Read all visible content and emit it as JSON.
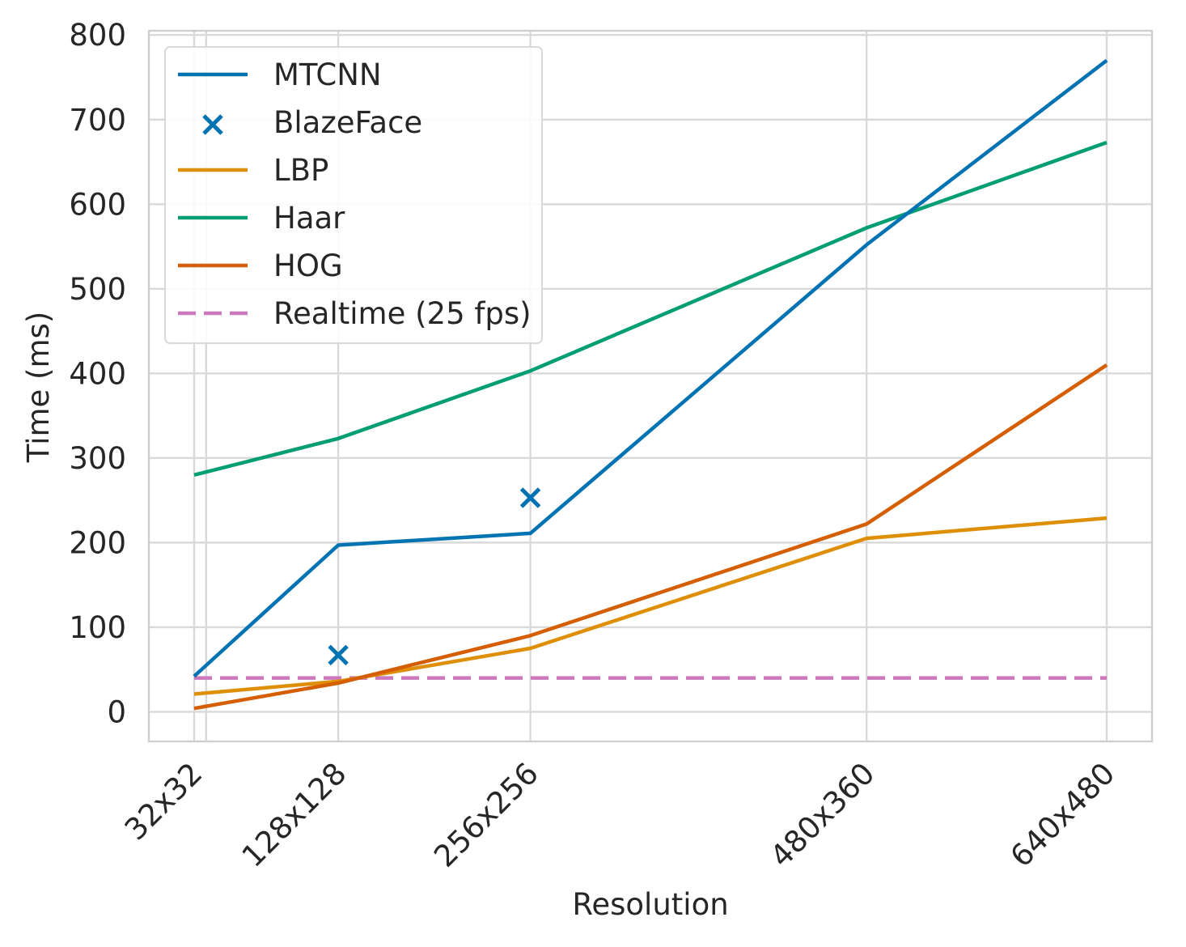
{
  "chart_data": {
    "type": "line",
    "title": "",
    "xlabel": "Resolution",
    "ylabel": "Time (ms)",
    "x": [
      32,
      40,
      128,
      256,
      480,
      640
    ],
    "x_ticks": [
      {
        "value": 32,
        "label": "32x32"
      },
      {
        "value": 128,
        "label": "128x128"
      },
      {
        "value": 256,
        "label": "256x256"
      },
      {
        "value": 480,
        "label": "480x360"
      },
      {
        "value": 640,
        "label": "640x480"
      }
    ],
    "y_ticks": [
      0,
      100,
      200,
      300,
      400,
      500,
      600,
      700,
      800
    ],
    "xlim": [
      0,
      644
    ],
    "ylim": [
      -35,
      805
    ],
    "grid": true,
    "legend_position": "top-left",
    "series": [
      {
        "name": "MTCNN",
        "kind": "line",
        "color": "#0173b2",
        "dash": false,
        "points": [
          [
            32,
            42
          ],
          [
            128,
            197
          ],
          [
            256,
            211
          ],
          [
            480,
            552
          ],
          [
            640,
            770
          ]
        ]
      },
      {
        "name": "BlazeFace",
        "kind": "marker",
        "marker": "x",
        "color": "#0173b2",
        "dash": false,
        "points": [
          [
            128,
            67
          ],
          [
            256,
            253
          ]
        ]
      },
      {
        "name": "LBP",
        "kind": "line",
        "color": "#de8f05",
        "dash": false,
        "points": [
          [
            32,
            21
          ],
          [
            128,
            36
          ],
          [
            256,
            75
          ],
          [
            480,
            205
          ],
          [
            640,
            229
          ]
        ]
      },
      {
        "name": "Haar",
        "kind": "line",
        "color": "#029e73",
        "dash": false,
        "points": [
          [
            32,
            280
          ],
          [
            128,
            323
          ],
          [
            256,
            403
          ],
          [
            480,
            572
          ],
          [
            640,
            673
          ]
        ]
      },
      {
        "name": "HOG",
        "kind": "line",
        "color": "#d55e00",
        "dash": false,
        "points": [
          [
            32,
            4
          ],
          [
            128,
            34
          ],
          [
            256,
            90
          ],
          [
            480,
            222
          ],
          [
            640,
            410
          ]
        ]
      },
      {
        "name": "Realtime (25 fps)",
        "kind": "line",
        "color": "#cc78bc",
        "dash": true,
        "points": [
          [
            32,
            40
          ],
          [
            640,
            40
          ]
        ]
      }
    ]
  }
}
